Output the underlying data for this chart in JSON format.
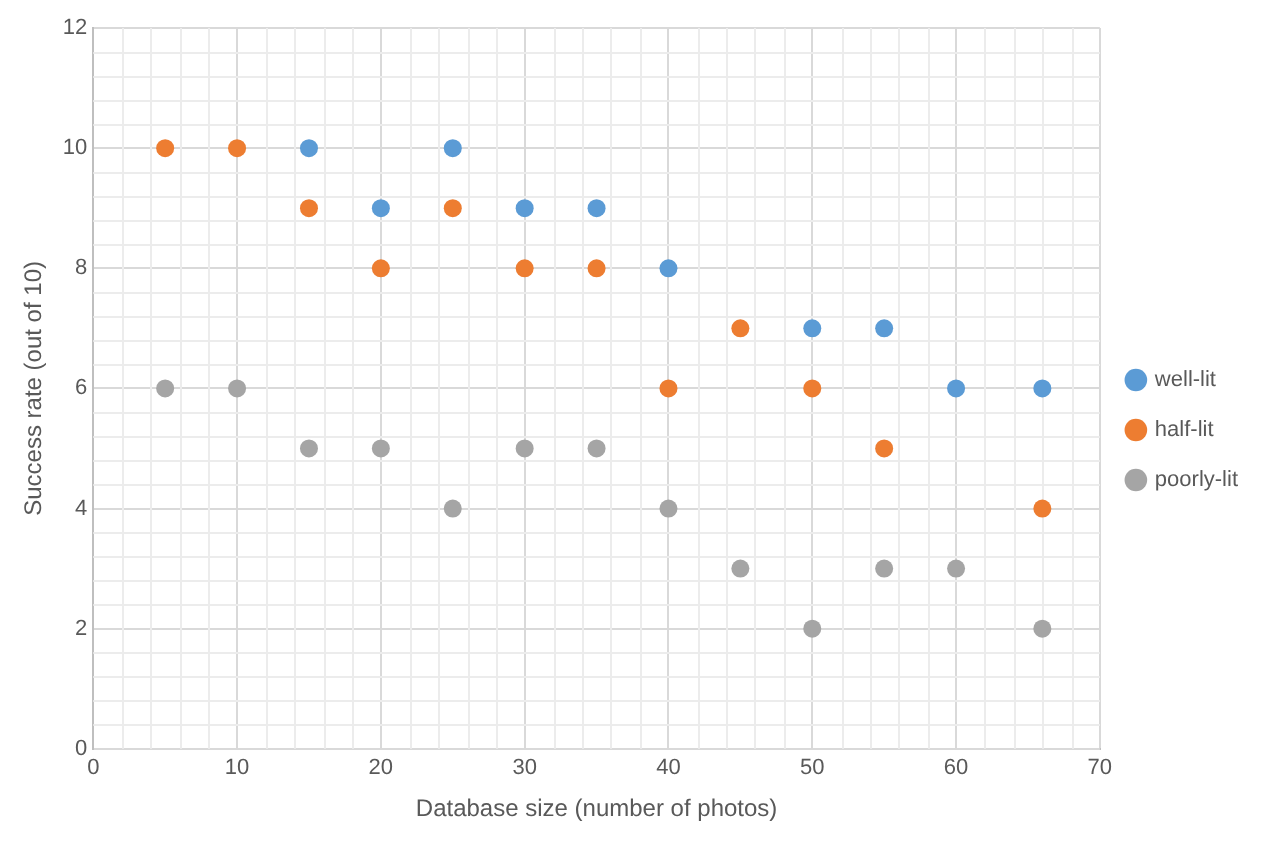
{
  "chart_data": {
    "type": "scatter",
    "xlabel": "Database size (number of photos)",
    "ylabel": "Success rate (out of 10)",
    "x": [
      5,
      10,
      15,
      20,
      25,
      30,
      35,
      40,
      45,
      50,
      55,
      60,
      66
    ],
    "series": [
      {
        "name": "well-lit",
        "color": "#5b9bd5",
        "values": [
          null,
          null,
          10,
          9,
          10,
          9,
          9,
          8,
          null,
          7,
          7,
          6,
          6
        ]
      },
      {
        "name": "half-lit",
        "color": "#ed7d31",
        "values": [
          10,
          10,
          9,
          8,
          9,
          8,
          8,
          6,
          7,
          6,
          5,
          null,
          4
        ]
      },
      {
        "name": "poorly-lit",
        "color": "#a5a5a5",
        "values": [
          6,
          6,
          5,
          5,
          4,
          5,
          5,
          4,
          3,
          2,
          3,
          3,
          2
        ]
      }
    ],
    "xlim": [
      0,
      70
    ],
    "xticks": [
      0,
      10,
      20,
      30,
      40,
      50,
      60,
      70
    ],
    "ylim": [
      0,
      12
    ],
    "yticks": [
      0,
      2,
      4,
      6,
      8,
      10,
      12
    ],
    "grid": true,
    "legend": "right",
    "marker": "circle"
  }
}
